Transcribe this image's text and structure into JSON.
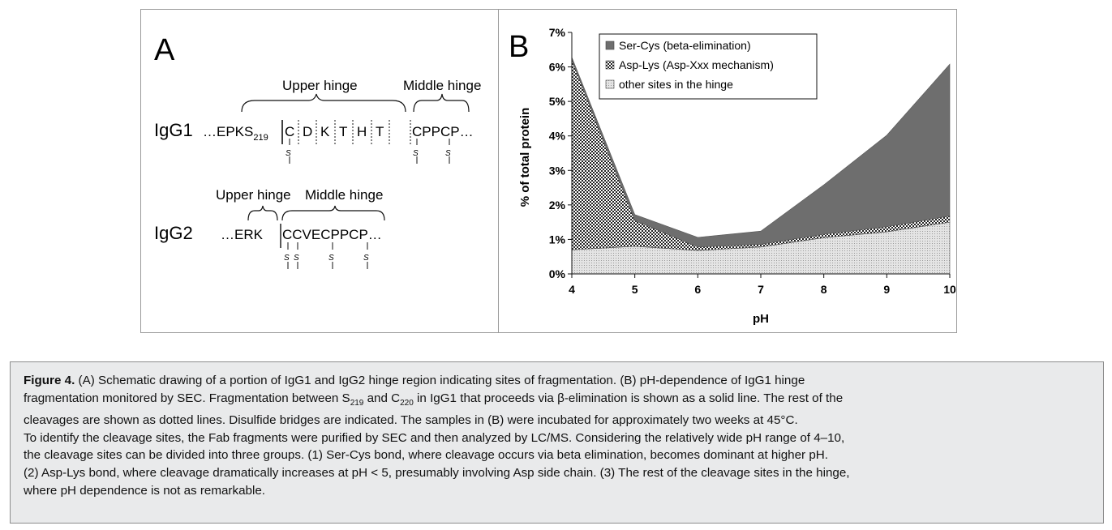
{
  "panel_a": {
    "label": "A",
    "igg1": {
      "name": "IgG1",
      "upper_hinge_label": "Upper hinge",
      "middle_hinge_label": "Middle hinge",
      "prefix": "…EPKS",
      "prefix_sub": "219",
      "residues": [
        "C",
        "D",
        "K",
        "T",
        "H",
        "T"
      ],
      "tail": "CPPCP…",
      "disulfide_label": "S"
    },
    "igg2": {
      "name": "IgG2",
      "upper_hinge_label": "Upper hinge",
      "middle_hinge_label": "Middle hinge",
      "prefix": "…ERK",
      "sequence": "CCVECPPCP…",
      "disulfide_label": "S"
    }
  },
  "chart_data": {
    "type": "area",
    "panel_label": "B",
    "x": [
      4,
      5,
      6,
      7,
      8,
      9,
      10
    ],
    "xlabel": "pH",
    "ylabel": "% of total protein",
    "xlim": [
      4,
      10
    ],
    "ylim": [
      0,
      7
    ],
    "y_ticks": [
      "0%",
      "1%",
      "2%",
      "3%",
      "4%",
      "5%",
      "6%",
      "7%"
    ],
    "x_ticks": [
      "4",
      "5",
      "6",
      "7",
      "8",
      "9",
      "10"
    ],
    "stacked": true,
    "legend_position": "top-left",
    "series": [
      {
        "name": "other sites in the hinge",
        "values": [
          0.7,
          0.8,
          0.68,
          0.78,
          1.05,
          1.22,
          1.5
        ],
        "color": "#d2d2d2",
        "pattern": "fine-dots"
      },
      {
        "name": "Asp-Lys (Asp-Xxx mechanism)",
        "values": [
          5.5,
          0.75,
          0.1,
          0.08,
          0.1,
          0.15,
          0.18
        ],
        "color": "#2a2a2a",
        "pattern": "checker"
      },
      {
        "name": "Ser-Cys (beta-elimination)",
        "values": [
          0.08,
          0.17,
          0.28,
          0.38,
          1.43,
          2.65,
          4.4
        ],
        "color": "#6e6e6e",
        "pattern": "solid"
      }
    ]
  },
  "caption": {
    "label": "Figure 4.",
    "line1": "(A) Schematic drawing of a portion of IgG1 and IgG2 hinge region indicating sites of fragmentation. (B) pH-dependence of IgG1 hinge",
    "line2a": "fragmentation monitored by SEC. Fragmentation between S",
    "sub1": "219",
    "line2b": " and C",
    "sub2": "220",
    "line2c": " in IgG1 that proceeds via β-elimination is shown as a solid line. The rest of the",
    "line3": "cleavages are shown as dotted lines. Disulfide bridges are indicated. The samples in (B) were incubated for approximately two weeks at 45°C.",
    "line4": "To identify the cleavage sites, the Fab fragments were purified by SEC and then analyzed by LC/MS. Considering the relatively wide pH range of 4–10,",
    "line5": "the cleavage sites can be divided into three groups. (1) Ser-Cys bond, where cleavage occurs via beta elimination, becomes dominant at higher pH.",
    "line6": "(2) Asp-Lys bond, where cleavage dramatically increases at pH < 5, presumably involving Asp side chain. (3) The rest of the cleavage sites in the hinge,",
    "line7": "where pH dependence is not as remarkable."
  }
}
